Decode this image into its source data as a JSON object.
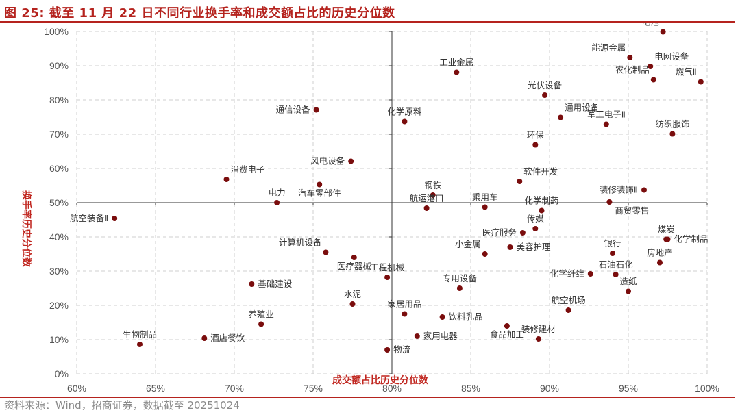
{
  "header": {
    "title": "图 25:  截至 11 月 22 日不同行业换手率和成交额占比的历史分位数"
  },
  "footer": {
    "source": "资料来源：Wind，招商证券，数据截至 20251024"
  },
  "colors": {
    "accent": "#b5231e",
    "point": "#7a0d0d",
    "grid": "#cfcfcf",
    "axis_title": "#c0261f"
  },
  "chart_data": {
    "type": "scatter",
    "title": "截至 11 月 22 日不同行业换手率和成交额占比的历史分位数",
    "xlabel": "成交额占比历史分位数",
    "ylabel": "换手率历史分位数",
    "xlim": [
      60,
      100
    ],
    "ylim": [
      0,
      100
    ],
    "x_ticks": [
      60,
      65,
      70,
      75,
      80,
      85,
      90,
      95,
      100
    ],
    "y_ticks": [
      0,
      10,
      20,
      30,
      40,
      50,
      60,
      70,
      80,
      90,
      100
    ],
    "x_tick_labels": [
      "60%",
      "65%",
      "70%",
      "75%",
      "80%",
      "85%",
      "90%",
      "95%",
      "100%"
    ],
    "y_tick_labels": [
      "0%",
      "10%",
      "20%",
      "30%",
      "40%",
      "50%",
      "60%",
      "70%",
      "80%",
      "90%",
      "100%"
    ],
    "grid": true,
    "reference_lines": {
      "x": 80,
      "y": 50
    },
    "points": [
      {
        "name": "电池",
        "x": 97.2,
        "y": 99.9,
        "pos": "ul"
      },
      {
        "name": "能源金属",
        "x": 95.1,
        "y": 92.4,
        "pos": "ul"
      },
      {
        "name": "电网设备",
        "x": 96.4,
        "y": 89.8,
        "pos": "ur"
      },
      {
        "name": "农化制品",
        "x": 96.6,
        "y": 85.9,
        "pos": "ul"
      },
      {
        "name": "燃气Ⅱ",
        "x": 99.6,
        "y": 85.3,
        "pos": "ul"
      },
      {
        "name": "工业金属",
        "x": 84.1,
        "y": 88.1,
        "pos": "u"
      },
      {
        "name": "光伏设备",
        "x": 89.7,
        "y": 81.4,
        "pos": "u"
      },
      {
        "name": "通用设备",
        "x": 90.7,
        "y": 74.9,
        "pos": "ur"
      },
      {
        "name": "军工电子Ⅱ",
        "x": 93.6,
        "y": 72.9,
        "pos": "u"
      },
      {
        "name": "纺织服饰",
        "x": 97.8,
        "y": 70.1,
        "pos": "u"
      },
      {
        "name": "环保",
        "x": 89.1,
        "y": 66.9,
        "pos": "u"
      },
      {
        "name": "通信设备",
        "x": 75.2,
        "y": 77.1,
        "pos": "l"
      },
      {
        "name": "化学原料",
        "x": 80.8,
        "y": 73.7,
        "pos": "u"
      },
      {
        "name": "风电设备",
        "x": 77.4,
        "y": 62.1,
        "pos": "l"
      },
      {
        "name": "软件开发",
        "x": 88.1,
        "y": 56.2,
        "pos": "ur"
      },
      {
        "name": "消费电子",
        "x": 69.5,
        "y": 56.8,
        "pos": "ur"
      },
      {
        "name": "汽车零部件",
        "x": 75.4,
        "y": 55.3,
        "pos": "b"
      },
      {
        "name": "电力",
        "x": 72.7,
        "y": 50.0,
        "pos": "u"
      },
      {
        "name": "钢铁",
        "x": 82.6,
        "y": 52.2,
        "pos": "u"
      },
      {
        "name": "航运港口",
        "x": 82.2,
        "y": 48.4,
        "pos": "u"
      },
      {
        "name": "乘用车",
        "x": 85.9,
        "y": 48.7,
        "pos": "u"
      },
      {
        "name": "化学制药",
        "x": 89.5,
        "y": 47.7,
        "pos": "u"
      },
      {
        "name": "装修装饰Ⅱ",
        "x": 96.0,
        "y": 53.7,
        "pos": "l"
      },
      {
        "name": "商贸零售",
        "x": 93.8,
        "y": 50.2,
        "pos": "br"
      },
      {
        "name": "航空装备Ⅱ",
        "x": 62.4,
        "y": 45.4,
        "pos": "l"
      },
      {
        "name": "传媒",
        "x": 89.1,
        "y": 42.4,
        "pos": "u"
      },
      {
        "name": "医疗服务",
        "x": 88.3,
        "y": 41.2,
        "pos": "l"
      },
      {
        "name": "美容护理",
        "x": 87.5,
        "y": 37.0,
        "pos": "r"
      },
      {
        "name": "计算机设备",
        "x": 75.8,
        "y": 35.5,
        "pos": "ul"
      },
      {
        "name": "小金属",
        "x": 85.9,
        "y": 35.0,
        "pos": "ul"
      },
      {
        "name": "银行",
        "x": 94.0,
        "y": 35.2,
        "pos": "u"
      },
      {
        "name": "煤炭",
        "x": 97.4,
        "y": 39.3,
        "pos": "u"
      },
      {
        "name": "化学制品",
        "x": 97.5,
        "y": 39.3,
        "pos": "r"
      },
      {
        "name": "房地产",
        "x": 97.0,
        "y": 32.5,
        "pos": "u"
      },
      {
        "name": "石油石化",
        "x": 94.2,
        "y": 29.0,
        "pos": "u"
      },
      {
        "name": "化学纤维",
        "x": 92.6,
        "y": 29.2,
        "pos": "l"
      },
      {
        "name": "造纸",
        "x": 95.0,
        "y": 24.1,
        "pos": "u"
      },
      {
        "name": "医疗器械",
        "x": 77.6,
        "y": 34.0,
        "pos": "b"
      },
      {
        "name": "工程机械",
        "x": 79.7,
        "y": 28.2,
        "pos": "u"
      },
      {
        "name": "基础建设",
        "x": 71.1,
        "y": 26.2,
        "pos": "r"
      },
      {
        "name": "专用设备",
        "x": 84.3,
        "y": 25.0,
        "pos": "u"
      },
      {
        "name": "水泥",
        "x": 77.5,
        "y": 20.4,
        "pos": "u"
      },
      {
        "name": "家居用品",
        "x": 80.8,
        "y": 17.5,
        "pos": "u"
      },
      {
        "name": "饮料乳品",
        "x": 83.2,
        "y": 16.6,
        "pos": "r"
      },
      {
        "name": "航空机场",
        "x": 91.2,
        "y": 18.6,
        "pos": "u"
      },
      {
        "name": "食品加工",
        "x": 87.3,
        "y": 14.0,
        "pos": "b"
      },
      {
        "name": "装修建材",
        "x": 89.3,
        "y": 10.2,
        "pos": "u"
      },
      {
        "name": "养殖业",
        "x": 71.7,
        "y": 14.5,
        "pos": "u"
      },
      {
        "name": "家用电器",
        "x": 81.6,
        "y": 11.0,
        "pos": "r"
      },
      {
        "name": "酒店餐饮",
        "x": 68.1,
        "y": 10.4,
        "pos": "r"
      },
      {
        "name": "物流",
        "x": 79.7,
        "y": 7.0,
        "pos": "r"
      },
      {
        "name": "生物制品",
        "x": 64.0,
        "y": 8.6,
        "pos": "u"
      }
    ]
  }
}
